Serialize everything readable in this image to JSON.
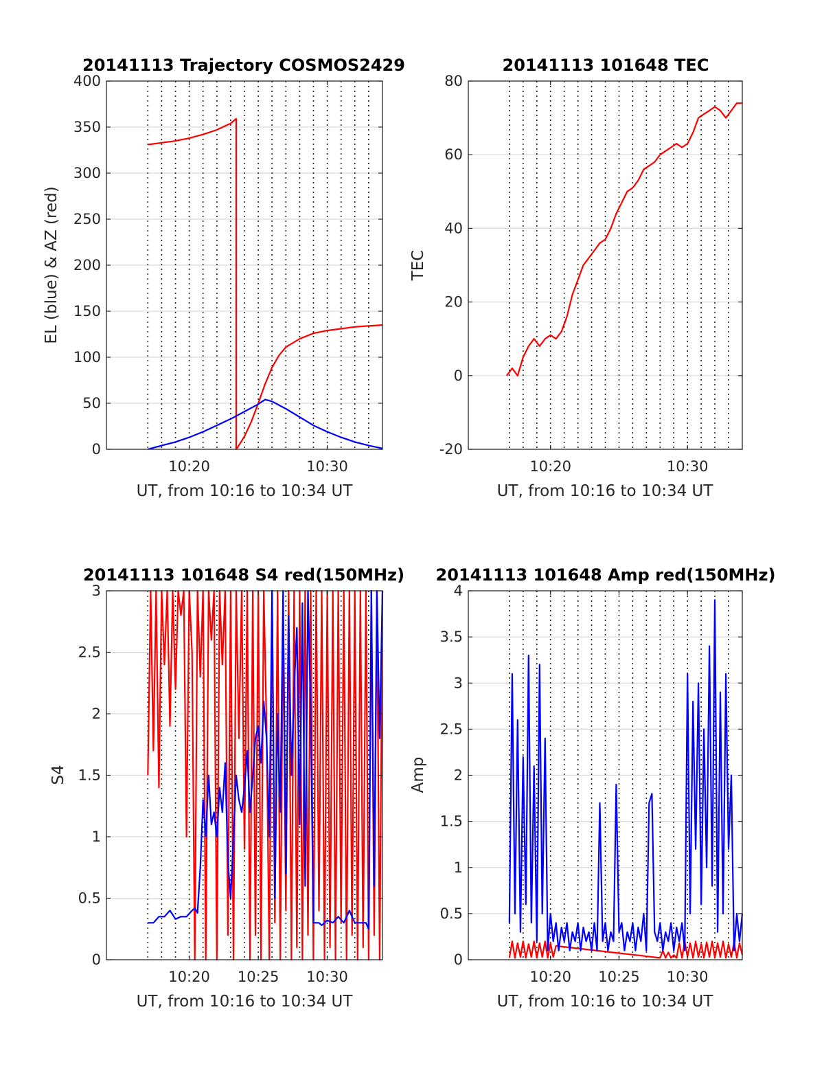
{
  "figure": {
    "x_major_ticks": [
      10.3333,
      10.5
    ],
    "x_tick_labels": [
      "10:20",
      "10:30"
    ],
    "x_major_ticks_3": [
      10.3333,
      10.4167,
      10.5
    ],
    "x_tick_labels_3": [
      "10:20",
      "10:25",
      "10:30"
    ],
    "x_minor_grid": [
      10.2833,
      10.3,
      10.3167,
      10.3333,
      10.35,
      10.3667,
      10.3833,
      10.4,
      10.4167,
      10.4333,
      10.45,
      10.4667,
      10.4833,
      10.5,
      10.5167,
      10.5333,
      10.55
    ],
    "xlim": [
      10.2333,
      10.5667
    ]
  },
  "chart_data": [
    {
      "type": "line",
      "title": "20141113 Trajectory COSMOS2429",
      "xlabel": "UT, from 10:16 to 10:34 UT",
      "ylabel": "EL (blue) & AZ (red)",
      "ylim": [
        0,
        400
      ],
      "yticks": [
        0,
        50,
        100,
        150,
        200,
        250,
        300,
        350,
        400
      ],
      "ytick_labels": [
        "0",
        "50",
        "100",
        "150",
        "200",
        "250",
        "300",
        "350",
        "400"
      ],
      "x_ticks_key": "two",
      "grid": true,
      "series": [
        {
          "color": "#ff0000",
          "x": [
            10.2833,
            10.3,
            10.3167,
            10.3333,
            10.35,
            10.3667,
            10.3833,
            10.39,
            10.39,
            10.3917,
            10.4,
            10.4083,
            10.4167,
            10.425,
            10.4333,
            10.4417,
            10.45,
            10.4667,
            10.4833,
            10.5,
            10.5167,
            10.5333,
            10.55,
            10.5667
          ],
          "values": [
            331,
            333,
            335,
            338,
            342,
            347,
            354,
            359,
            0,
            2,
            14,
            30,
            50,
            71,
            89,
            102,
            111,
            120,
            126,
            129,
            131,
            133,
            134,
            135
          ]
        },
        {
          "color": "#0000ff",
          "x": [
            10.2833,
            10.3,
            10.3167,
            10.3333,
            10.35,
            10.3667,
            10.3833,
            10.4,
            10.4167,
            10.425,
            10.4333,
            10.45,
            10.4667,
            10.4833,
            10.5,
            10.5167,
            10.5333,
            10.55,
            10.5667
          ],
          "values": [
            0,
            4,
            8,
            13,
            19,
            26,
            33,
            41,
            49,
            54,
            52,
            44,
            35,
            26,
            19,
            13,
            8,
            4,
            1
          ]
        }
      ]
    },
    {
      "type": "line",
      "title": "20141113 101648 TEC",
      "xlabel": "UT, from 10:16 to 10:34 UT",
      "ylabel": "TEC",
      "ylim": [
        -20,
        80
      ],
      "yticks": [
        -20,
        0,
        20,
        40,
        60,
        80
      ],
      "ytick_labels": [
        "-20",
        "0",
        "20",
        "40",
        "60",
        "80"
      ],
      "x_ticks_key": "two",
      "grid": true,
      "series": [
        {
          "color": "#ff0000",
          "x": [
            10.28,
            10.2867,
            10.2933,
            10.3,
            10.3067,
            10.3133,
            10.32,
            10.3267,
            10.3333,
            10.34,
            10.3467,
            10.3533,
            10.36,
            10.3667,
            10.3733,
            10.38,
            10.3867,
            10.3933,
            10.4,
            10.4067,
            10.4133,
            10.42,
            10.4267,
            10.4333,
            10.44,
            10.4467,
            10.4533,
            10.46,
            10.4667,
            10.4733,
            10.48,
            10.4867,
            10.4933,
            10.5,
            10.5067,
            10.5133,
            10.52,
            10.5267,
            10.5333,
            10.54,
            10.5467,
            10.5533,
            10.56,
            10.5667
          ],
          "values": [
            0,
            2,
            0,
            5,
            8,
            10,
            8,
            10,
            11,
            10,
            12,
            16,
            22,
            26,
            30,
            32,
            34,
            36,
            37,
            40,
            44,
            47,
            50,
            51,
            53,
            56,
            57,
            58,
            60,
            61,
            62,
            63,
            62,
            63,
            66,
            70,
            71,
            72,
            73,
            72,
            70,
            72,
            74,
            74
          ]
        }
      ]
    },
    {
      "type": "line",
      "title": "20141113 101648 S4 red(150MHz)",
      "xlabel": "UT, from 10:16 to 10:34 UT",
      "ylabel": "S4",
      "ylim": [
        0,
        3
      ],
      "yticks": [
        0,
        0.5,
        1,
        1.5,
        2,
        2.5,
        3
      ],
      "ytick_labels": [
        "0",
        "0.5",
        "1",
        "1.5",
        "2",
        "2.5",
        "3"
      ],
      "x_ticks_key": "three",
      "grid": true,
      "series": [
        {
          "color": "#ff0000",
          "x": [
            10.2833,
            10.2867,
            10.29,
            10.2933,
            10.2967,
            10.3,
            10.3033,
            10.3067,
            10.31,
            10.3133,
            10.3167,
            10.32,
            10.3233,
            10.3267,
            10.33,
            10.3333,
            10.3367,
            10.34,
            10.3433,
            10.3467,
            10.35,
            10.3533,
            10.3567,
            10.36,
            10.3633,
            10.3667,
            10.37,
            10.3733,
            10.3767,
            10.38,
            10.3833,
            10.3867,
            10.39,
            10.3933,
            10.3967,
            10.4,
            10.4033,
            10.4067,
            10.41,
            10.4133,
            10.4167,
            10.42,
            10.4233,
            10.4267,
            10.43,
            10.4333,
            10.4367,
            10.44,
            10.4433,
            10.4467,
            10.45,
            10.4533,
            10.4567,
            10.46,
            10.4633,
            10.4667,
            10.47,
            10.4733,
            10.4767,
            10.48,
            10.4833,
            10.4867,
            10.49,
            10.4933,
            10.4967,
            10.5,
            10.5033,
            10.5067,
            10.51,
            10.5133,
            10.5167,
            10.52,
            10.5233,
            10.5267,
            10.53,
            10.5333,
            10.5367,
            10.54,
            10.5433,
            10.5467,
            10.55,
            10.5533,
            10.5567,
            10.56,
            10.5633,
            10.5667
          ],
          "values": [
            1.5,
            3.0,
            1.7,
            3.0,
            1.4,
            3.0,
            2.4,
            3.0,
            1.9,
            3.0,
            2.2,
            3.0,
            2.8,
            3.0,
            1.0,
            3.0,
            2.5,
            0.0,
            3.0,
            2.3,
            3.0,
            0.0,
            3.0,
            2.6,
            3.0,
            0.0,
            3.0,
            2.4,
            3.0,
            0.2,
            3.0,
            0.0,
            3.0,
            1.8,
            3.0,
            0.9,
            3.0,
            0.0,
            3.0,
            0.2,
            3.0,
            0.0,
            3.0,
            1.9,
            0.0,
            3.0,
            0.3,
            3.0,
            0.0,
            2.8,
            0.4,
            3.0,
            0.0,
            3.0,
            0.1,
            3.0,
            0.0,
            3.0,
            0.2,
            3.0,
            0.0,
            3.0,
            0.4,
            3.0,
            0.0,
            3.0,
            0.1,
            3.0,
            0.0,
            3.0,
            0.3,
            3.0,
            0.0,
            3.0,
            0.2,
            3.0,
            0.0,
            3.0,
            0.1,
            3.0,
            0.0,
            3.0,
            0.2,
            3.0,
            0.0,
            3.0
          ]
        },
        {
          "color": "#0000ff",
          "x": [
            10.2833,
            10.29,
            10.2967,
            10.3033,
            10.31,
            10.3167,
            10.3233,
            10.33,
            10.3367,
            10.34,
            10.3433,
            10.3467,
            10.35,
            10.3533,
            10.3567,
            10.36,
            10.3633,
            10.3667,
            10.37,
            10.3733,
            10.3767,
            10.38,
            10.3833,
            10.3867,
            10.39,
            10.3933,
            10.3967,
            10.4,
            10.4033,
            10.4067,
            10.41,
            10.4133,
            10.4167,
            10.42,
            10.4233,
            10.4267,
            10.43,
            10.4333,
            10.4367,
            10.44,
            10.4433,
            10.4467,
            10.45,
            10.4533,
            10.4567,
            10.46,
            10.4633,
            10.4667,
            10.47,
            10.4733,
            10.4767,
            10.48,
            10.4833,
            10.4867,
            10.49,
            10.4933,
            10.4967,
            10.5,
            10.5067,
            10.5133,
            10.52,
            10.5267,
            10.5333,
            10.54,
            10.5467,
            10.55,
            10.5533,
            10.5567,
            10.56,
            10.5633,
            10.5667
          ],
          "values": [
            0.3,
            0.3,
            0.35,
            0.35,
            0.4,
            0.33,
            0.35,
            0.35,
            0.4,
            0.42,
            0.38,
            0.75,
            1.3,
            1.0,
            1.5,
            1.1,
            1.2,
            1.0,
            1.4,
            1.2,
            1.6,
            0.8,
            0.5,
            1.0,
            1.5,
            1.3,
            1.2,
            1.4,
            1.7,
            1.2,
            1.5,
            1.8,
            1.9,
            1.6,
            2.1,
            1.8,
            1.0,
            3.0,
            0.5,
            2.0,
            1.2,
            3.0,
            0.7,
            2.8,
            1.5,
            2.2,
            2.7,
            1.1,
            2.9,
            0.6,
            3.0,
            2.0,
            0.3,
            0.3,
            0.3,
            0.28,
            0.3,
            0.32,
            0.3,
            0.35,
            0.3,
            0.4,
            0.3,
            0.3,
            0.3,
            0.25,
            3.0,
            0.6,
            3.0,
            1.8,
            3.0
          ]
        }
      ]
    },
    {
      "type": "line",
      "title": "20141113 101648 Amp red(150MHz)",
      "xlabel": "UT, from 10:16 to 10:34 UT",
      "ylabel": "Amp",
      "ylim": [
        0,
        4
      ],
      "yticks": [
        0,
        0.5,
        1,
        1.5,
        2,
        2.5,
        3,
        3.5,
        4
      ],
      "ytick_labels": [
        "0",
        "0.5",
        "1",
        "1.5",
        "2",
        "2.5",
        "3",
        "3.5",
        "4"
      ],
      "x_ticks_key": "three",
      "grid": true,
      "series": [
        {
          "color": "#ff0000",
          "x": [
            10.2833,
            10.2867,
            10.29,
            10.2933,
            10.2967,
            10.3,
            10.3033,
            10.3067,
            10.31,
            10.3133,
            10.3167,
            10.32,
            10.3233,
            10.3267,
            10.33,
            10.3333,
            10.3367,
            10.34,
            10.4667,
            10.47,
            10.4733,
            10.4767,
            10.48,
            10.4833,
            10.4867,
            10.49,
            10.4933,
            10.4967,
            10.5,
            10.5033,
            10.5067,
            10.51,
            10.5133,
            10.5167,
            10.52,
            10.5233,
            10.5267,
            10.53,
            10.5333,
            10.5367,
            10.54,
            10.5433,
            10.5467,
            10.55,
            10.5533,
            10.5567,
            10.56,
            10.5633,
            10.5667
          ],
          "values": [
            0.02,
            0.2,
            0.02,
            0.18,
            0.03,
            0.2,
            0.02,
            0.17,
            0.03,
            0.2,
            0.02,
            0.18,
            0.03,
            0.2,
            0.02,
            0.18,
            0.03,
            0.15,
            0.02,
            0.1,
            0.02,
            0.08,
            0.02,
            0.05,
            0.02,
            0.18,
            0.02,
            0.2,
            0.03,
            0.18,
            0.02,
            0.2,
            0.03,
            0.17,
            0.02,
            0.19,
            0.03,
            0.2,
            0.02,
            0.18,
            0.03,
            0.2,
            0.02,
            0.17,
            0.03,
            0.19,
            0.02,
            0.18,
            0.05
          ]
        },
        {
          "color": "#0000ff",
          "x": [
            10.2833,
            10.2867,
            10.29,
            10.2933,
            10.2967,
            10.3,
            10.3033,
            10.3067,
            10.31,
            10.3133,
            10.3167,
            10.32,
            10.3233,
            10.3267,
            10.33,
            10.3333,
            10.3367,
            10.34,
            10.3433,
            10.3467,
            10.35,
            10.3533,
            10.3567,
            10.36,
            10.3633,
            10.3667,
            10.37,
            10.3733,
            10.3767,
            10.38,
            10.3833,
            10.3867,
            10.39,
            10.3933,
            10.3967,
            10.4,
            10.4033,
            10.4067,
            10.41,
            10.4133,
            10.4167,
            10.42,
            10.4233,
            10.4267,
            10.43,
            10.4333,
            10.4367,
            10.44,
            10.4433,
            10.4467,
            10.45,
            10.4533,
            10.4567,
            10.46,
            10.4633,
            10.4667,
            10.47,
            10.4733,
            10.4767,
            10.48,
            10.4833,
            10.4867,
            10.49,
            10.4933,
            10.4967,
            10.5,
            10.5033,
            10.5067,
            10.51,
            10.5133,
            10.5167,
            10.52,
            10.5233,
            10.5267,
            10.53,
            10.5333,
            10.5367,
            10.54,
            10.5433,
            10.5467,
            10.55,
            10.5533,
            10.5567,
            10.56,
            10.5633,
            10.5667
          ],
          "values": [
            0.4,
            3.1,
            0.5,
            2.6,
            0.3,
            2.2,
            0.6,
            3.3,
            0.4,
            2.1,
            0.2,
            3.2,
            0.5,
            2.4,
            0.1,
            0.5,
            0.2,
            0.4,
            0.1,
            0.35,
            0.2,
            0.4,
            0.1,
            0.3,
            0.2,
            0.4,
            0.1,
            0.35,
            0.2,
            0.3,
            0.1,
            0.4,
            0.1,
            1.7,
            0.2,
            0.4,
            0.1,
            0.3,
            0.2,
            1.9,
            0.3,
            0.4,
            0.1,
            0.3,
            0.2,
            0.4,
            0.1,
            0.35,
            0.2,
            0.5,
            0.1,
            1.7,
            1.8,
            0.3,
            0.2,
            0.4,
            0.1,
            0.3,
            0.2,
            0.4,
            0.1,
            0.35,
            0.2,
            0.4,
            0.1,
            3.1,
            0.5,
            2.8,
            1.2,
            3.0,
            0.6,
            2.5,
            1.0,
            3.4,
            0.8,
            3.9,
            0.3,
            2.9,
            0.5,
            3.1,
            1.2,
            2.0,
            0.1,
            0.5,
            0.2,
            0.5
          ]
        }
      ]
    }
  ]
}
